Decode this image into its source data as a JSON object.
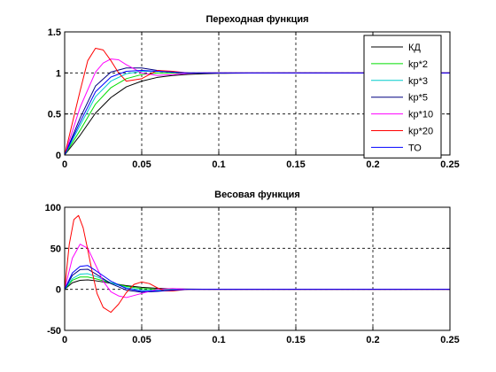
{
  "chart_data": [
    {
      "type": "line",
      "title": "Переходная функция",
      "xlabel": "",
      "ylabel": "",
      "xlim": [
        0,
        0.25
      ],
      "ylim": [
        0,
        1.5
      ],
      "xticks": [
        "0",
        "0.05",
        "0.1",
        "0.15",
        "0.2",
        "0.25"
      ],
      "yticks": [
        "0",
        "0.5",
        "1",
        "1.5"
      ],
      "grid": true,
      "legend_position": "top-right",
      "series": [
        {
          "name": "КД",
          "color": "#000000",
          "x": [
            0,
            0.01,
            0.02,
            0.03,
            0.04,
            0.05,
            0.06,
            0.07,
            0.08,
            0.09,
            0.1,
            0.11,
            0.12,
            0.14,
            0.25
          ],
          "y": [
            0,
            0.24,
            0.51,
            0.7,
            0.83,
            0.9,
            0.945,
            0.968,
            0.982,
            0.99,
            0.995,
            0.997,
            0.998,
            1.0,
            1.0
          ]
        },
        {
          "name": "kp*2",
          "color": "#00dd00",
          "x": [
            0,
            0.01,
            0.02,
            0.03,
            0.04,
            0.05,
            0.06,
            0.07,
            0.08,
            0.09,
            0.1,
            0.25
          ],
          "y": [
            0,
            0.3,
            0.62,
            0.82,
            0.93,
            0.98,
            1.0,
            1.0,
            1.0,
            1.0,
            1.0,
            1.0
          ]
        },
        {
          "name": "kp*3",
          "color": "#00cccc",
          "x": [
            0,
            0.01,
            0.02,
            0.03,
            0.04,
            0.05,
            0.06,
            0.07,
            0.08,
            0.09,
            0.1,
            0.25
          ],
          "y": [
            0,
            0.36,
            0.71,
            0.9,
            0.99,
            1.02,
            1.02,
            1.01,
            1.0,
            1.0,
            1.0,
            1.0
          ]
        },
        {
          "name": "kp*5",
          "color": "#000080",
          "x": [
            0,
            0.01,
            0.02,
            0.03,
            0.04,
            0.05,
            0.06,
            0.07,
            0.08,
            0.09,
            0.1,
            0.25
          ],
          "y": [
            0,
            0.45,
            0.84,
            1.01,
            1.06,
            1.06,
            1.03,
            1.01,
            1.0,
            1.0,
            1.0,
            1.0
          ]
        },
        {
          "name": "kp*10",
          "color": "#ff00ff",
          "x": [
            0,
            0.01,
            0.02,
            0.025,
            0.03,
            0.035,
            0.04,
            0.05,
            0.06,
            0.07,
            0.08,
            0.09,
            0.1,
            0.25
          ],
          "y": [
            0,
            0.58,
            1.01,
            1.12,
            1.17,
            1.16,
            1.1,
            1.0,
            0.97,
            0.98,
            0.995,
            1.0,
            1.0,
            1.0
          ]
        },
        {
          "name": "kp*20",
          "color": "#ff0000",
          "x": [
            0,
            0.01,
            0.015,
            0.02,
            0.025,
            0.03,
            0.035,
            0.04,
            0.05,
            0.06,
            0.07,
            0.08,
            0.1,
            0.25
          ],
          "y": [
            0,
            0.78,
            1.15,
            1.3,
            1.28,
            1.15,
            1.0,
            0.9,
            0.93,
            1.03,
            1.02,
            1.0,
            1.0,
            1.0
          ]
        },
        {
          "name": "ТО",
          "color": "#0000ff",
          "x": [
            0,
            0.01,
            0.02,
            0.03,
            0.04,
            0.05,
            0.06,
            0.07,
            0.08,
            0.09,
            0.1,
            0.25
          ],
          "y": [
            0,
            0.4,
            0.77,
            0.95,
            1.02,
            1.03,
            1.02,
            1.01,
            1.0,
            1.0,
            1.0,
            1.0
          ]
        }
      ]
    },
    {
      "type": "line",
      "title": "Весовая функция",
      "xlabel": "",
      "ylabel": "",
      "xlim": [
        0,
        0.25
      ],
      "ylim": [
        -50,
        100
      ],
      "xticks": [
        "0",
        "0.05",
        "0.1",
        "0.15",
        "0.2",
        "0.25"
      ],
      "yticks": [
        "-50",
        "0",
        "50",
        "100"
      ],
      "grid": true,
      "series": [
        {
          "name": "КД",
          "color": "#000000",
          "x": [
            0,
            0.005,
            0.01,
            0.015,
            0.02,
            0.03,
            0.04,
            0.05,
            0.06,
            0.07,
            0.08,
            0.1,
            0.25
          ],
          "y": [
            0,
            8,
            11,
            11.5,
            10.5,
            7.5,
            4.5,
            2.5,
            1.3,
            0.6,
            0.3,
            0,
            0
          ]
        },
        {
          "name": "kp*2",
          "color": "#00dd00",
          "x": [
            0,
            0.005,
            0.01,
            0.015,
            0.02,
            0.03,
            0.04,
            0.05,
            0.06,
            0.07,
            0.08,
            0.1,
            0.25
          ],
          "y": [
            0,
            11,
            15,
            15,
            13,
            8,
            3.5,
            1,
            0,
            -0.3,
            0,
            0,
            0
          ]
        },
        {
          "name": "kp*3",
          "color": "#00cccc",
          "x": [
            0,
            0.005,
            0.01,
            0.015,
            0.02,
            0.03,
            0.04,
            0.05,
            0.06,
            0.07,
            0.08,
            0.1,
            0.25
          ],
          "y": [
            0,
            13,
            18.5,
            19,
            16,
            8,
            2,
            -1,
            -1.5,
            -0.5,
            0,
            0,
            0
          ]
        },
        {
          "name": "kp*5",
          "color": "#000080",
          "x": [
            0,
            0.005,
            0.01,
            0.015,
            0.02,
            0.03,
            0.04,
            0.05,
            0.06,
            0.07,
            0.08,
            0.1,
            0.25
          ],
          "y": [
            0,
            17,
            24,
            24.5,
            19,
            7,
            -1,
            -3.5,
            -2.5,
            -1,
            0,
            0,
            0
          ]
        },
        {
          "name": "kp*10",
          "color": "#ff00ff",
          "x": [
            0,
            0.005,
            0.01,
            0.015,
            0.02,
            0.025,
            0.03,
            0.035,
            0.04,
            0.05,
            0.06,
            0.07,
            0.08,
            0.1,
            0.25
          ],
          "y": [
            0,
            38,
            55,
            50,
            30,
            10,
            -3,
            -8,
            -10,
            -5,
            0,
            1,
            0,
            0,
            0
          ]
        },
        {
          "name": "kp*20",
          "color": "#ff0000",
          "x": [
            0,
            0.003,
            0.006,
            0.009,
            0.012,
            0.015,
            0.018,
            0.021,
            0.025,
            0.03,
            0.035,
            0.04,
            0.045,
            0.05,
            0.055,
            0.06,
            0.065,
            0.07,
            0.08,
            0.1,
            0.25
          ],
          "y": [
            0,
            55,
            85,
            90,
            75,
            48,
            20,
            -5,
            -22,
            -28,
            -18,
            -4,
            6,
            9,
            7,
            2,
            -2,
            -2,
            0,
            0,
            0
          ]
        },
        {
          "name": "ТО",
          "color": "#0000ff",
          "x": [
            0,
            0.005,
            0.01,
            0.015,
            0.02,
            0.03,
            0.04,
            0.05,
            0.06,
            0.07,
            0.08,
            0.1,
            0.25
          ],
          "y": [
            0,
            20,
            28,
            29,
            23,
            10,
            1,
            -2.5,
            -2,
            -1,
            0,
            0,
            0
          ]
        }
      ]
    }
  ]
}
